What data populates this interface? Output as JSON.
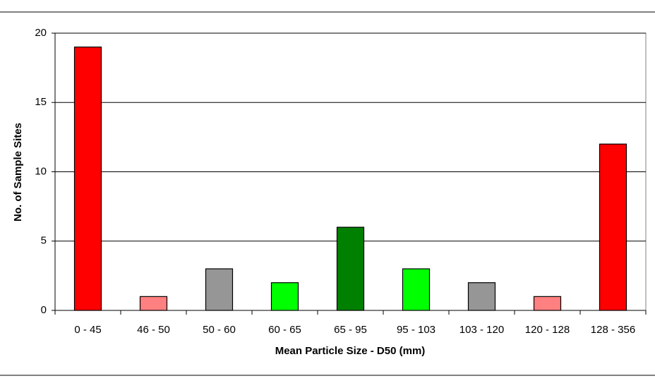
{
  "chart_data": {
    "type": "bar",
    "xlabel": "Mean Particle Size - D50 (mm)",
    "ylabel": "No. of Sample Sites",
    "categories": [
      "0 - 45",
      "46 - 50",
      "50 - 60",
      "60 - 65",
      "65 - 95",
      "95 - 103",
      "103 - 120",
      "120 - 128",
      "128 - 356"
    ],
    "values": [
      19,
      1,
      3,
      2,
      6,
      3,
      2,
      1,
      12
    ],
    "colors": [
      "#ff0000",
      "#ff8080",
      "#969696",
      "#00ff00",
      "#008000",
      "#00ff00",
      "#969696",
      "#ff8080",
      "#ff0000"
    ],
    "ylim": [
      0,
      20
    ],
    "yticks": [
      0,
      5,
      10,
      15,
      20
    ],
    "grid": true
  }
}
